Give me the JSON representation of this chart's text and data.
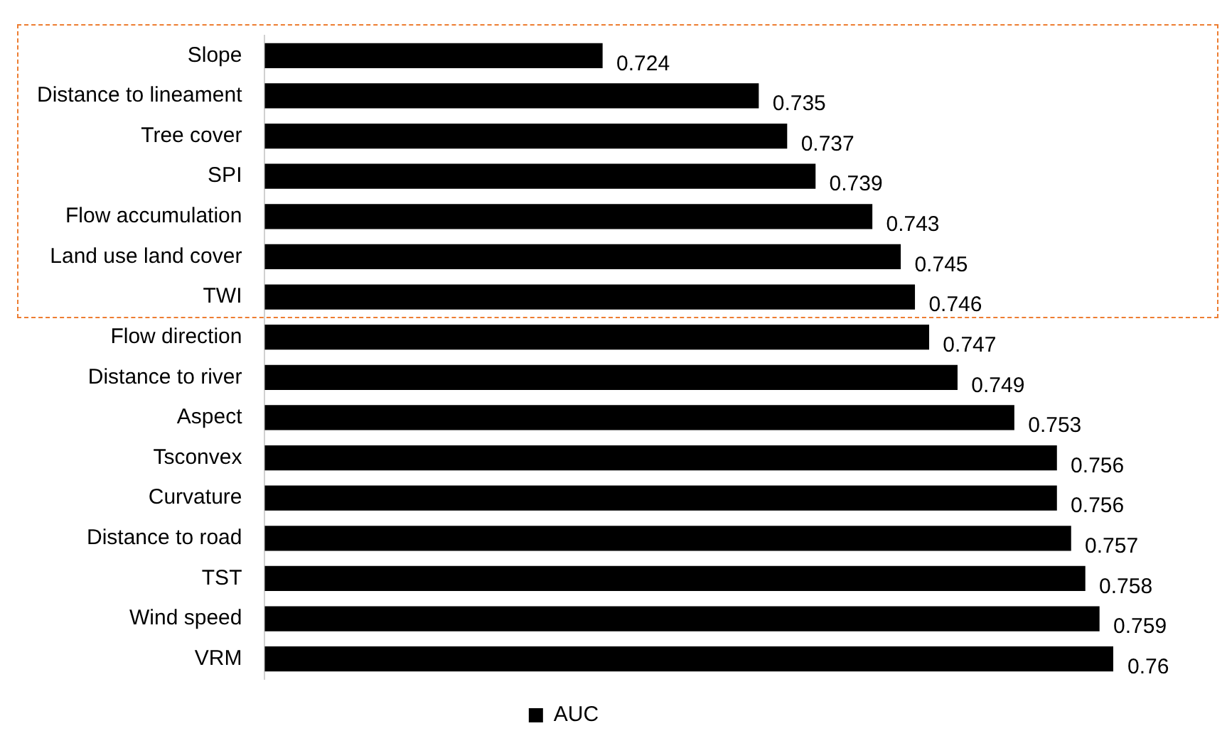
{
  "chart_data": {
    "type": "bar",
    "orientation": "horizontal",
    "categories": [
      "Slope",
      "Distance to lineament",
      "Tree cover",
      "SPI",
      "Flow accumulation",
      "Land use land cover",
      "TWI",
      "Flow direction",
      "Distance to river",
      "Aspect",
      "Tsconvex",
      "Curvature",
      "Distance to road",
      "TST",
      "Wind speed",
      "VRM"
    ],
    "series": [
      {
        "name": "AUC",
        "color": "#000000",
        "values": [
          0.724,
          0.735,
          0.737,
          0.739,
          0.743,
          0.745,
          0.746,
          0.747,
          0.749,
          0.753,
          0.756,
          0.756,
          0.757,
          0.758,
          0.759,
          0.76
        ]
      }
    ],
    "tick_labels": "y",
    "grid": false,
    "legend": "bottom",
    "data_labels": true
  }
}
